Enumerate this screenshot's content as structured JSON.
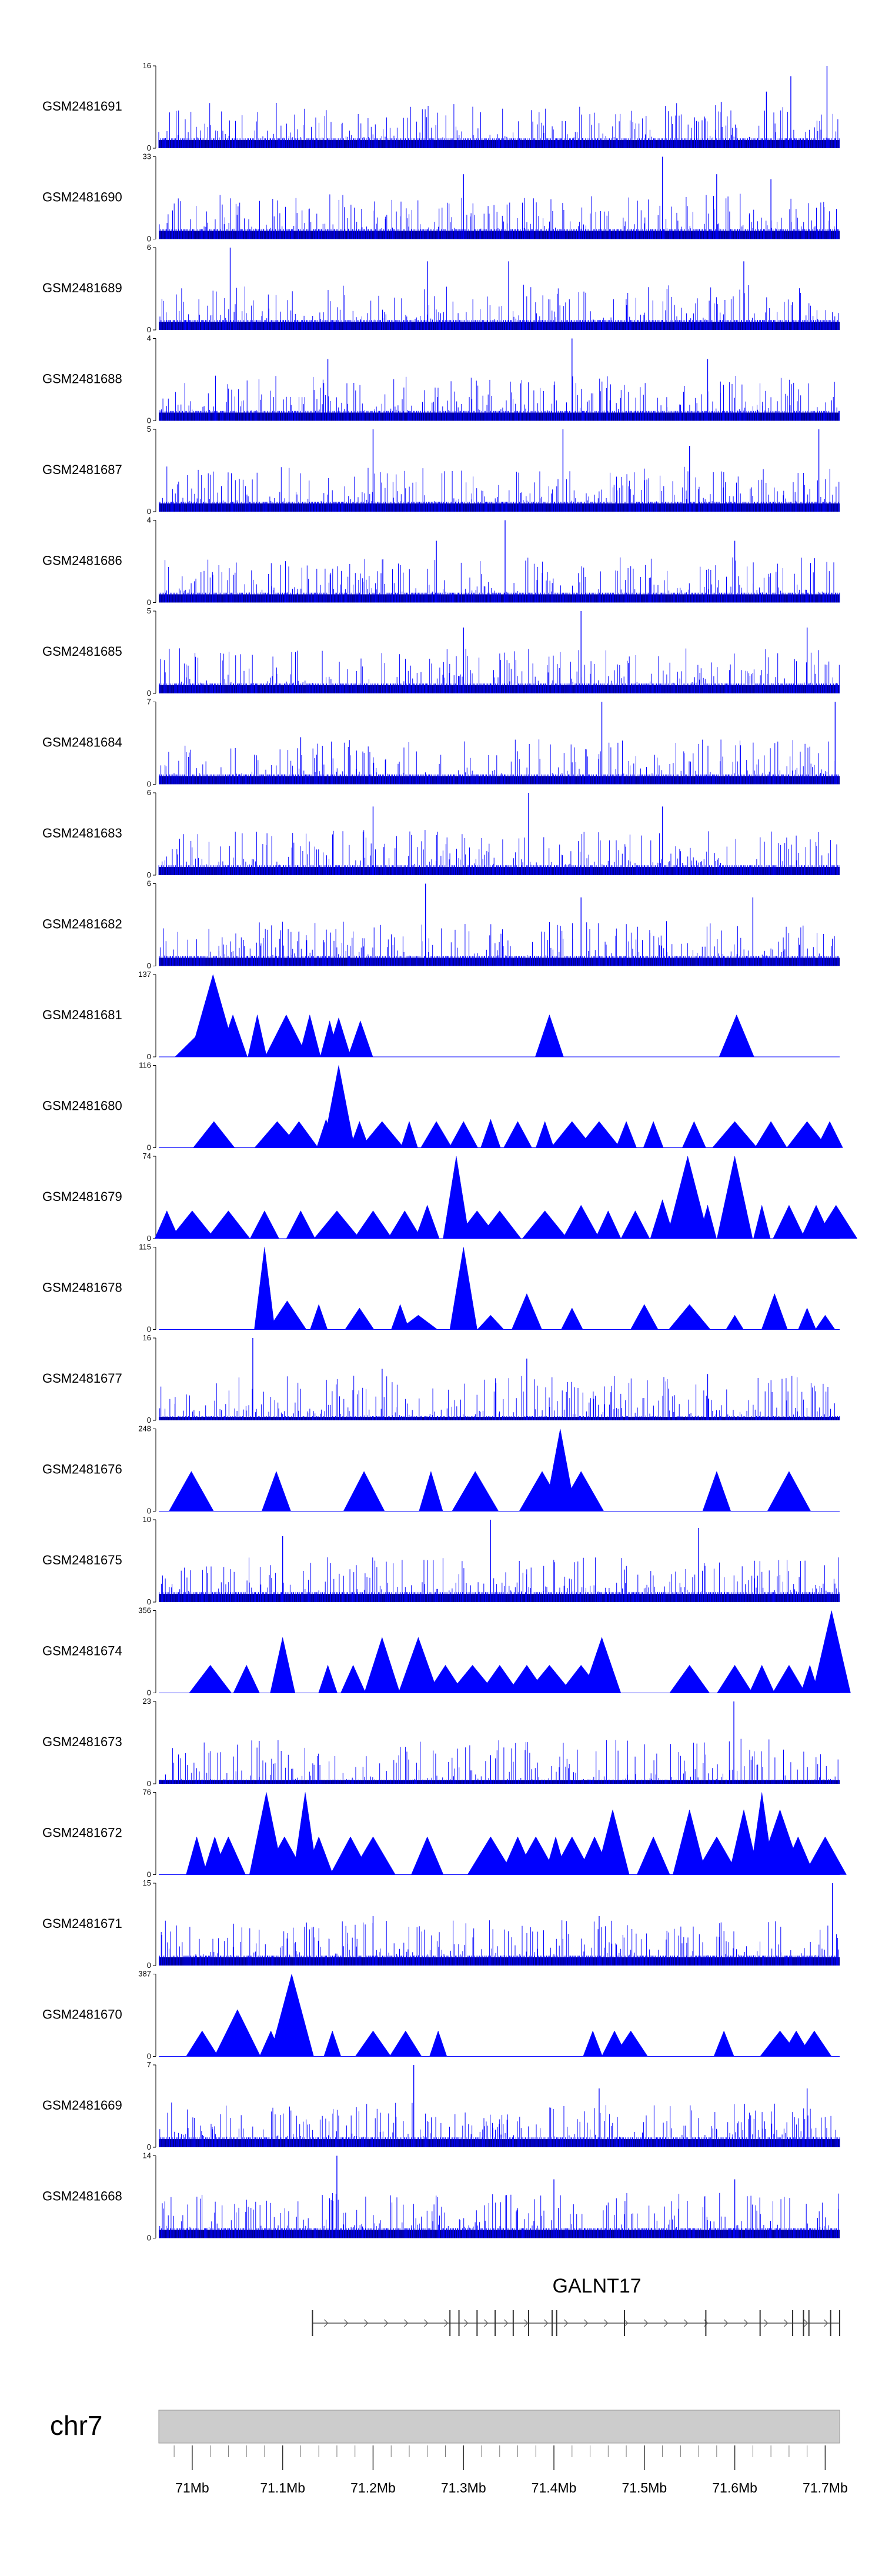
{
  "chart_data": {
    "type": "area",
    "chromosome": "chr7",
    "xlim": [
      70.963,
      71.716
    ],
    "x_unit": "Mb",
    "x_ticks": [
      {
        "value": 71.0,
        "label": "71Mb"
      },
      {
        "value": 71.1,
        "label": "71.1Mb"
      },
      {
        "value": 71.2,
        "label": "71.2Mb"
      },
      {
        "value": 71.3,
        "label": "71.3Mb"
      },
      {
        "value": 71.4,
        "label": "71.4Mb"
      },
      {
        "value": 71.5,
        "label": "71.5Mb"
      },
      {
        "value": 71.6,
        "label": "71.6Mb"
      },
      {
        "value": 71.7,
        "label": "71.7Mb"
      }
    ],
    "color": "#0000ff",
    "series": [
      {
        "name": "GSM2481691",
        "ymax": 16,
        "style": "dense",
        "seed": 3,
        "peaks": [
          [
            71.585,
            9
          ],
          [
            71.635,
            11
          ],
          [
            71.662,
            14
          ],
          [
            71.702,
            16
          ]
        ]
      },
      {
        "name": "GSM2481690",
        "ymax": 33,
        "style": "dense",
        "seed": 5,
        "peaks": [
          [
            71.3,
            26
          ],
          [
            71.52,
            33
          ],
          [
            71.58,
            26
          ],
          [
            71.64,
            24
          ]
        ]
      },
      {
        "name": "GSM2481689",
        "ymax": 6,
        "style": "dense",
        "seed": 7,
        "peaks": [
          [
            71.042,
            6
          ],
          [
            71.26,
            5
          ],
          [
            71.35,
            5
          ],
          [
            71.61,
            5
          ]
        ]
      },
      {
        "name": "GSM2481688",
        "ymax": 4,
        "style": "dense",
        "seed": 11,
        "peaks": [
          [
            71.42,
            4
          ],
          [
            71.15,
            3
          ],
          [
            71.57,
            3
          ]
        ]
      },
      {
        "name": "GSM2481687",
        "ymax": 5,
        "style": "dense",
        "seed": 13,
        "peaks": [
          [
            71.2,
            5
          ],
          [
            71.41,
            5
          ],
          [
            71.55,
            4
          ],
          [
            71.693,
            5
          ]
        ]
      },
      {
        "name": "GSM2481686",
        "ymax": 4,
        "style": "dense",
        "seed": 17,
        "peaks": [
          [
            71.346,
            4
          ],
          [
            71.27,
            3
          ],
          [
            71.6,
            3
          ]
        ]
      },
      {
        "name": "GSM2481685",
        "ymax": 5,
        "style": "dense",
        "seed": 19,
        "peaks": [
          [
            71.3,
            4
          ],
          [
            71.43,
            5
          ],
          [
            71.68,
            4
          ]
        ]
      },
      {
        "name": "GSM2481684",
        "ymax": 7,
        "style": "dense",
        "seed": 23,
        "peaks": [
          [
            71.453,
            7
          ],
          [
            71.711,
            7
          ],
          [
            71.12,
            4
          ]
        ]
      },
      {
        "name": "GSM2481683",
        "ymax": 6,
        "style": "dense",
        "seed": 29,
        "peaks": [
          [
            71.372,
            6
          ],
          [
            71.2,
            5
          ],
          [
            71.52,
            5
          ]
        ]
      },
      {
        "name": "GSM2481682",
        "ymax": 6,
        "style": "dense",
        "seed": 31,
        "peaks": [
          [
            71.258,
            6
          ],
          [
            71.43,
            5
          ],
          [
            71.62,
            5
          ]
        ]
      },
      {
        "name": "GSM2481681",
        "ymax": 137,
        "style": "peaks",
        "seed": 37,
        "peaks": [
          [
            71.006,
            37
          ],
          [
            71.023,
            137
          ],
          [
            71.045,
            70
          ],
          [
            71.072,
            70
          ],
          [
            71.104,
            70
          ],
          [
            71.13,
            70
          ],
          [
            71.152,
            60
          ],
          [
            71.162,
            65
          ],
          [
            71.186,
            60
          ],
          [
            71.395,
            70
          ],
          [
            71.602,
            70
          ]
        ]
      },
      {
        "name": "GSM2481680",
        "ymax": 116,
        "style": "peaks",
        "seed": 41,
        "peaks": [
          [
            71.024,
            37
          ],
          [
            71.094,
            37
          ],
          [
            71.118,
            37
          ],
          [
            71.148,
            40
          ],
          [
            71.162,
            116
          ],
          [
            71.185,
            37
          ],
          [
            71.21,
            37
          ],
          [
            71.24,
            37
          ],
          [
            71.27,
            37
          ],
          [
            71.3,
            37
          ],
          [
            71.33,
            40
          ],
          [
            71.36,
            37
          ],
          [
            71.39,
            37
          ],
          [
            71.42,
            37
          ],
          [
            71.45,
            37
          ],
          [
            71.48,
            37
          ],
          [
            71.51,
            37
          ],
          [
            71.555,
            37
          ],
          [
            71.6,
            37
          ],
          [
            71.64,
            37
          ],
          [
            71.68,
            37
          ],
          [
            71.705,
            37
          ]
        ]
      },
      {
        "name": "GSM2481679",
        "ymax": 74,
        "style": "peaks",
        "seed": 43,
        "peaks": [
          [
            70.972,
            25
          ],
          [
            71.0,
            25
          ],
          [
            71.04,
            25
          ],
          [
            71.08,
            25
          ],
          [
            71.12,
            25
          ],
          [
            71.16,
            25
          ],
          [
            71.2,
            25
          ],
          [
            71.235,
            25
          ],
          [
            71.26,
            30
          ],
          [
            71.292,
            74
          ],
          [
            71.315,
            25
          ],
          [
            71.34,
            25
          ],
          [
            71.39,
            25
          ],
          [
            71.43,
            30
          ],
          [
            71.46,
            25
          ],
          [
            71.49,
            25
          ],
          [
            71.52,
            35
          ],
          [
            71.548,
            74
          ],
          [
            71.57,
            30
          ],
          [
            71.6,
            74
          ],
          [
            71.63,
            30
          ],
          [
            71.66,
            30
          ],
          [
            71.69,
            30
          ],
          [
            71.712,
            30
          ]
        ]
      },
      {
        "name": "GSM2481678",
        "ymax": 115,
        "style": "peaks",
        "seed": 47,
        "peaks": [
          [
            71.08,
            115
          ],
          [
            71.105,
            40
          ],
          [
            71.14,
            35
          ],
          [
            71.185,
            30
          ],
          [
            71.23,
            35
          ],
          [
            71.25,
            20
          ],
          [
            71.3,
            115
          ],
          [
            71.33,
            20
          ],
          [
            71.37,
            50
          ],
          [
            71.42,
            30
          ],
          [
            71.5,
            35
          ],
          [
            71.55,
            35
          ],
          [
            71.6,
            20
          ],
          [
            71.644,
            50
          ],
          [
            71.68,
            30
          ],
          [
            71.7,
            20
          ]
        ]
      },
      {
        "name": "GSM2481677",
        "ymax": 16,
        "style": "sparse",
        "seed": 53,
        "peaks": [
          [
            71.067,
            16
          ],
          [
            71.21,
            10
          ],
          [
            71.37,
            12
          ],
          [
            71.57,
            9
          ]
        ]
      },
      {
        "name": "GSM2481676",
        "ymax": 248,
        "style": "peaks",
        "seed": 59,
        "peaks": [
          [
            70.999,
            120
          ],
          [
            71.093,
            120
          ],
          [
            71.19,
            120
          ],
          [
            71.264,
            120
          ],
          [
            71.313,
            120
          ],
          [
            71.387,
            120
          ],
          [
            71.407,
            248
          ],
          [
            71.43,
            120
          ],
          [
            71.58,
            120
          ],
          [
            71.66,
            120
          ]
        ]
      },
      {
        "name": "GSM2481675",
        "ymax": 10,
        "style": "dense",
        "seed": 61,
        "peaks": [
          [
            71.1,
            8
          ],
          [
            71.33,
            10
          ],
          [
            71.56,
            9
          ]
        ]
      },
      {
        "name": "GSM2481674",
        "ymax": 356,
        "style": "peaks",
        "seed": 67,
        "peaks": [
          [
            71.02,
            120
          ],
          [
            71.06,
            120
          ],
          [
            71.1,
            240
          ],
          [
            71.15,
            120
          ],
          [
            71.178,
            120
          ],
          [
            71.21,
            240
          ],
          [
            71.25,
            240
          ],
          [
            71.28,
            120
          ],
          [
            71.31,
            120
          ],
          [
            71.34,
            120
          ],
          [
            71.37,
            120
          ],
          [
            71.395,
            120
          ],
          [
            71.43,
            120
          ],
          [
            71.453,
            240
          ],
          [
            71.55,
            120
          ],
          [
            71.6,
            120
          ],
          [
            71.63,
            120
          ],
          [
            71.66,
            120
          ],
          [
            71.683,
            120
          ],
          [
            71.707,
            356
          ]
        ]
      },
      {
        "name": "GSM2481673",
        "ymax": 23,
        "style": "sparse",
        "seed": 71,
        "peaks": [
          [
            71.074,
            12
          ],
          [
            71.599,
            23
          ],
          [
            71.33,
            8
          ]
        ]
      },
      {
        "name": "GSM2481672",
        "ymax": 76,
        "style": "peaks",
        "seed": 73,
        "peaks": [
          [
            71.005,
            35
          ],
          [
            71.025,
            35
          ],
          [
            71.04,
            35
          ],
          [
            71.082,
            76
          ],
          [
            71.102,
            35
          ],
          [
            71.125,
            76
          ],
          [
            71.14,
            35
          ],
          [
            71.175,
            35
          ],
          [
            71.2,
            35
          ],
          [
            71.26,
            35
          ],
          [
            71.33,
            35
          ],
          [
            71.36,
            35
          ],
          [
            71.38,
            35
          ],
          [
            71.402,
            35
          ],
          [
            71.42,
            35
          ],
          [
            71.445,
            35
          ],
          [
            71.465,
            60
          ],
          [
            71.51,
            35
          ],
          [
            71.55,
            60
          ],
          [
            71.58,
            35
          ],
          [
            71.61,
            60
          ],
          [
            71.63,
            76
          ],
          [
            71.65,
            60
          ],
          [
            71.67,
            35
          ],
          [
            71.7,
            35
          ]
        ]
      },
      {
        "name": "GSM2481671",
        "ymax": 15,
        "style": "dense",
        "seed": 79,
        "peaks": [
          [
            71.708,
            15
          ],
          [
            71.2,
            9
          ],
          [
            71.45,
            9
          ]
        ]
      },
      {
        "name": "GSM2481670",
        "ymax": 387,
        "style": "peaks",
        "seed": 83,
        "peaks": [
          [
            71.011,
            120
          ],
          [
            71.05,
            220
          ],
          [
            71.087,
            120
          ],
          [
            71.11,
            387
          ],
          [
            71.155,
            120
          ],
          [
            71.2,
            120
          ],
          [
            71.236,
            120
          ],
          [
            71.272,
            120
          ],
          [
            71.443,
            120
          ],
          [
            71.467,
            120
          ],
          [
            71.485,
            120
          ],
          [
            71.588,
            120
          ],
          [
            71.65,
            120
          ],
          [
            71.668,
            120
          ],
          [
            71.688,
            120
          ]
        ]
      },
      {
        "name": "GSM2481669",
        "ymax": 7,
        "style": "dense",
        "seed": 89,
        "peaks": [
          [
            71.245,
            7
          ],
          [
            71.45,
            5
          ],
          [
            71.68,
            5
          ]
        ]
      },
      {
        "name": "GSM2481668",
        "ymax": 14,
        "style": "dense",
        "seed": 97,
        "peaks": [
          [
            71.16,
            14
          ],
          [
            71.4,
            10
          ],
          [
            71.6,
            10
          ]
        ]
      }
    ],
    "gene": {
      "name": "GALNT17",
      "start": 71.133,
      "end": 71.716,
      "strand": "+",
      "exons": [
        71.133,
        71.285,
        71.295,
        71.315,
        71.335,
        71.355,
        71.372,
        71.398,
        71.403,
        71.478,
        71.568,
        71.628,
        71.664,
        71.676,
        71.682,
        71.706,
        71.716
      ]
    },
    "ideogram": {
      "label": "chr7",
      "color": "#cccccc"
    }
  }
}
